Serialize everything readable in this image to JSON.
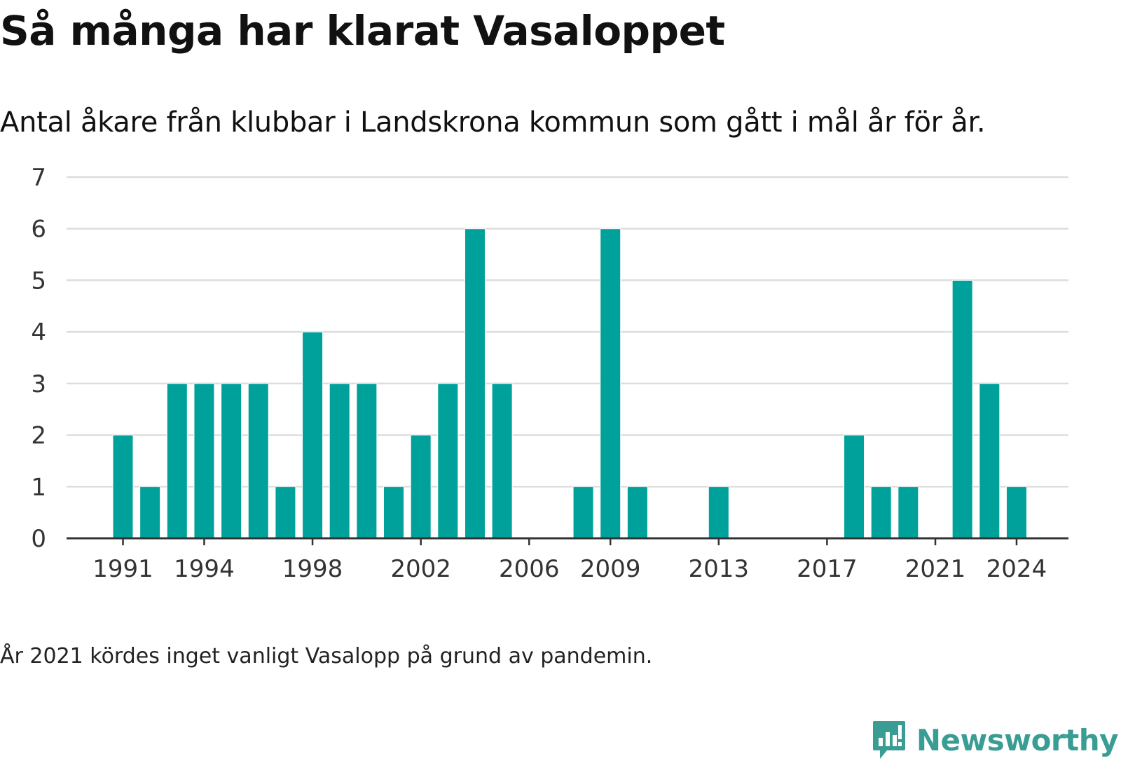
{
  "title": "Så många har klarat Vasaloppet",
  "subtitle": "Antal åkare från klubbar i Landskrona kommun som gått i mål år för år.",
  "note": "År 2021 kördes inget vanligt Vasalopp på grund av pandemin.",
  "brand": {
    "name": "Newsworthy",
    "icon": "newsworthy-logo-icon",
    "color": "#3a9d94"
  },
  "colors": {
    "bar": "#00a19a",
    "grid": "#dddddd",
    "axis": "#333333",
    "text": "#333333"
  },
  "chart_data": {
    "type": "bar",
    "title": "Så många har klarat Vasaloppet",
    "subtitle": "Antal åkare från klubbar i Landskrona kommun som gått i mål år för år.",
    "xlabel": "",
    "ylabel": "",
    "ylim": [
      0,
      7
    ],
    "yticks": [
      0,
      1,
      2,
      3,
      4,
      5,
      6,
      7
    ],
    "xticks": [
      "1991",
      "1994",
      "1998",
      "2002",
      "2006",
      "2009",
      "2013",
      "2017",
      "2021",
      "2024"
    ],
    "grid": true,
    "legend": "none",
    "categories": [
      1991,
      1992,
      1993,
      1994,
      1995,
      1996,
      1997,
      1998,
      1999,
      2000,
      2001,
      2002,
      2003,
      2004,
      2005,
      2006,
      2007,
      2008,
      2009,
      2010,
      2011,
      2012,
      2013,
      2014,
      2015,
      2016,
      2017,
      2018,
      2019,
      2020,
      2021,
      2022,
      2023,
      2024
    ],
    "values": [
      2,
      1,
      3,
      3,
      3,
      3,
      1,
      4,
      3,
      3,
      1,
      2,
      3,
      6,
      3,
      0,
      0,
      1,
      6,
      1,
      0,
      0,
      1,
      0,
      0,
      0,
      0,
      2,
      1,
      1,
      0,
      5,
      3,
      1
    ]
  }
}
